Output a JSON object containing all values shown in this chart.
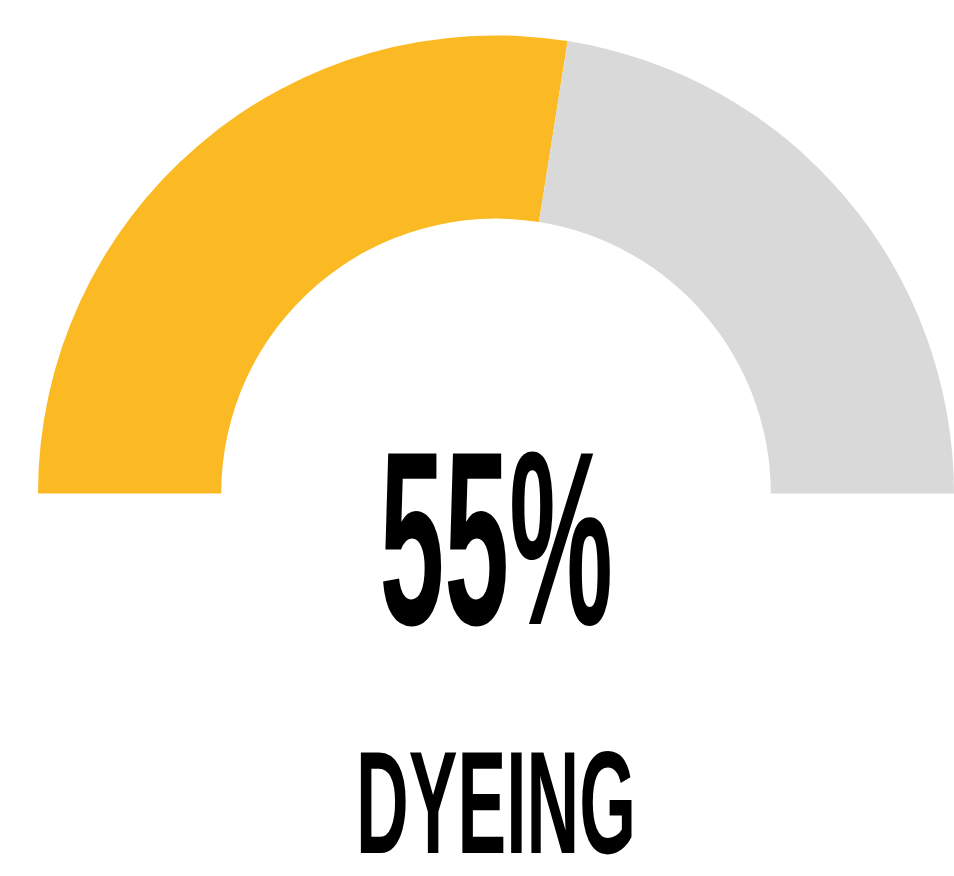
{
  "chart_data": {
    "type": "donut",
    "title": "DYEING",
    "categories": [
      null,
      null
    ],
    "values": [
      55,
      45
    ],
    "colors": [
      "#fbb924",
      "#d9d9d9"
    ],
    "annotations": [
      "55%"
    ]
  }
}
